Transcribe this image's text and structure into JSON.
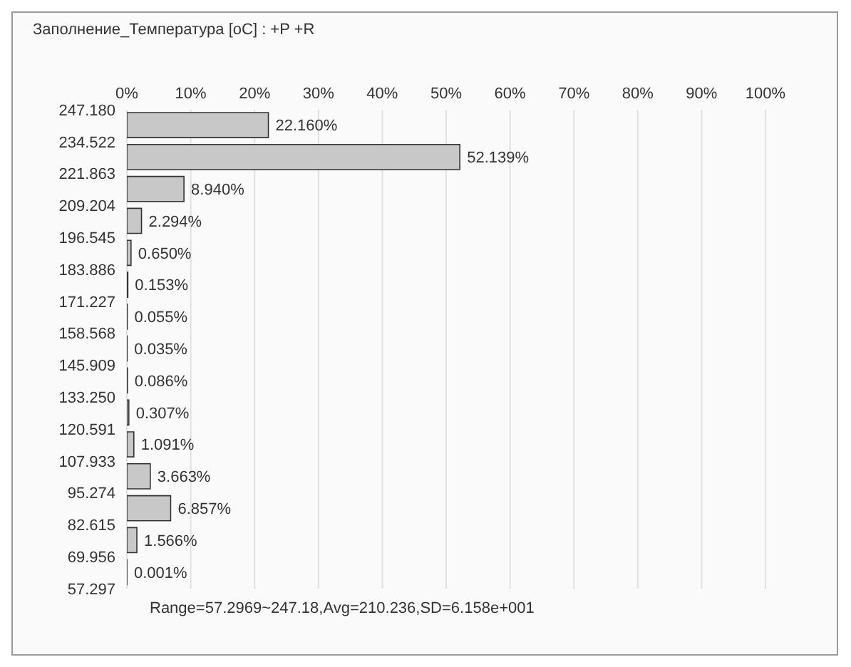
{
  "chart_data": {
    "type": "histogram",
    "orientation": "horizontal",
    "title": "Заполнение_Температура [oC] : +P +R",
    "bins": [
      57.297,
      69.956,
      82.615,
      95.274,
      107.933,
      120.591,
      133.25,
      145.909,
      158.568,
      171.227,
      183.886,
      196.545,
      209.204,
      221.863,
      234.522,
      247.18
    ],
    "values": [
      0.001,
      1.566,
      6.857,
      3.663,
      1.091,
      0.307,
      0.086,
      0.035,
      0.055,
      0.153,
      0.65,
      2.294,
      8.94,
      52.139,
      22.16
    ],
    "value_labels": [
      "0.001%",
      "1.566%",
      "6.857%",
      "3.663%",
      "1.091%",
      "0.307%",
      "0.086%",
      "0.035%",
      "0.055%",
      "0.153%",
      "0.650%",
      "2.294%",
      "8.940%",
      "52.139%",
      "22.160%"
    ],
    "color": "#c8c8c8",
    "xlim": [
      0,
      100
    ],
    "xticks": [
      {
        "value": 0,
        "label": "0%"
      },
      {
        "value": 10,
        "label": "10%"
      },
      {
        "value": 20,
        "label": "20%"
      },
      {
        "value": 30,
        "label": "30%"
      },
      {
        "value": 40,
        "label": "40%"
      },
      {
        "value": 50,
        "label": "50%"
      },
      {
        "value": 60,
        "label": "60%"
      },
      {
        "value": 70,
        "label": "70%"
      },
      {
        "value": 80,
        "label": "80%"
      },
      {
        "value": 90,
        "label": "90%"
      },
      {
        "value": 100,
        "label": "100%"
      }
    ],
    "ylim": [
      57.297,
      247.18
    ],
    "yticks": [
      {
        "value": 57.297,
        "label": "57.297"
      },
      {
        "value": 69.956,
        "label": "69.956"
      },
      {
        "value": 82.615,
        "label": "82.615"
      },
      {
        "value": 95.274,
        "label": "95.274"
      },
      {
        "value": 107.933,
        "label": "107.933"
      },
      {
        "value": 120.591,
        "label": "120.591"
      },
      {
        "value": 133.25,
        "label": "133.250"
      },
      {
        "value": 145.909,
        "label": "145.909"
      },
      {
        "value": 158.568,
        "label": "158.568"
      },
      {
        "value": 171.227,
        "label": "171.227"
      },
      {
        "value": 183.886,
        "label": "183.886"
      },
      {
        "value": 196.545,
        "label": "196.545"
      },
      {
        "value": 209.204,
        "label": "209.204"
      },
      {
        "value": 221.863,
        "label": "221.863"
      },
      {
        "value": 234.522,
        "label": "234.522"
      },
      {
        "value": 247.18,
        "label": "247.180"
      }
    ],
    "grid": "x",
    "annotations": [
      "Range=57.2969~247.18,Avg=210.236,SD=6.158e+001"
    ]
  }
}
